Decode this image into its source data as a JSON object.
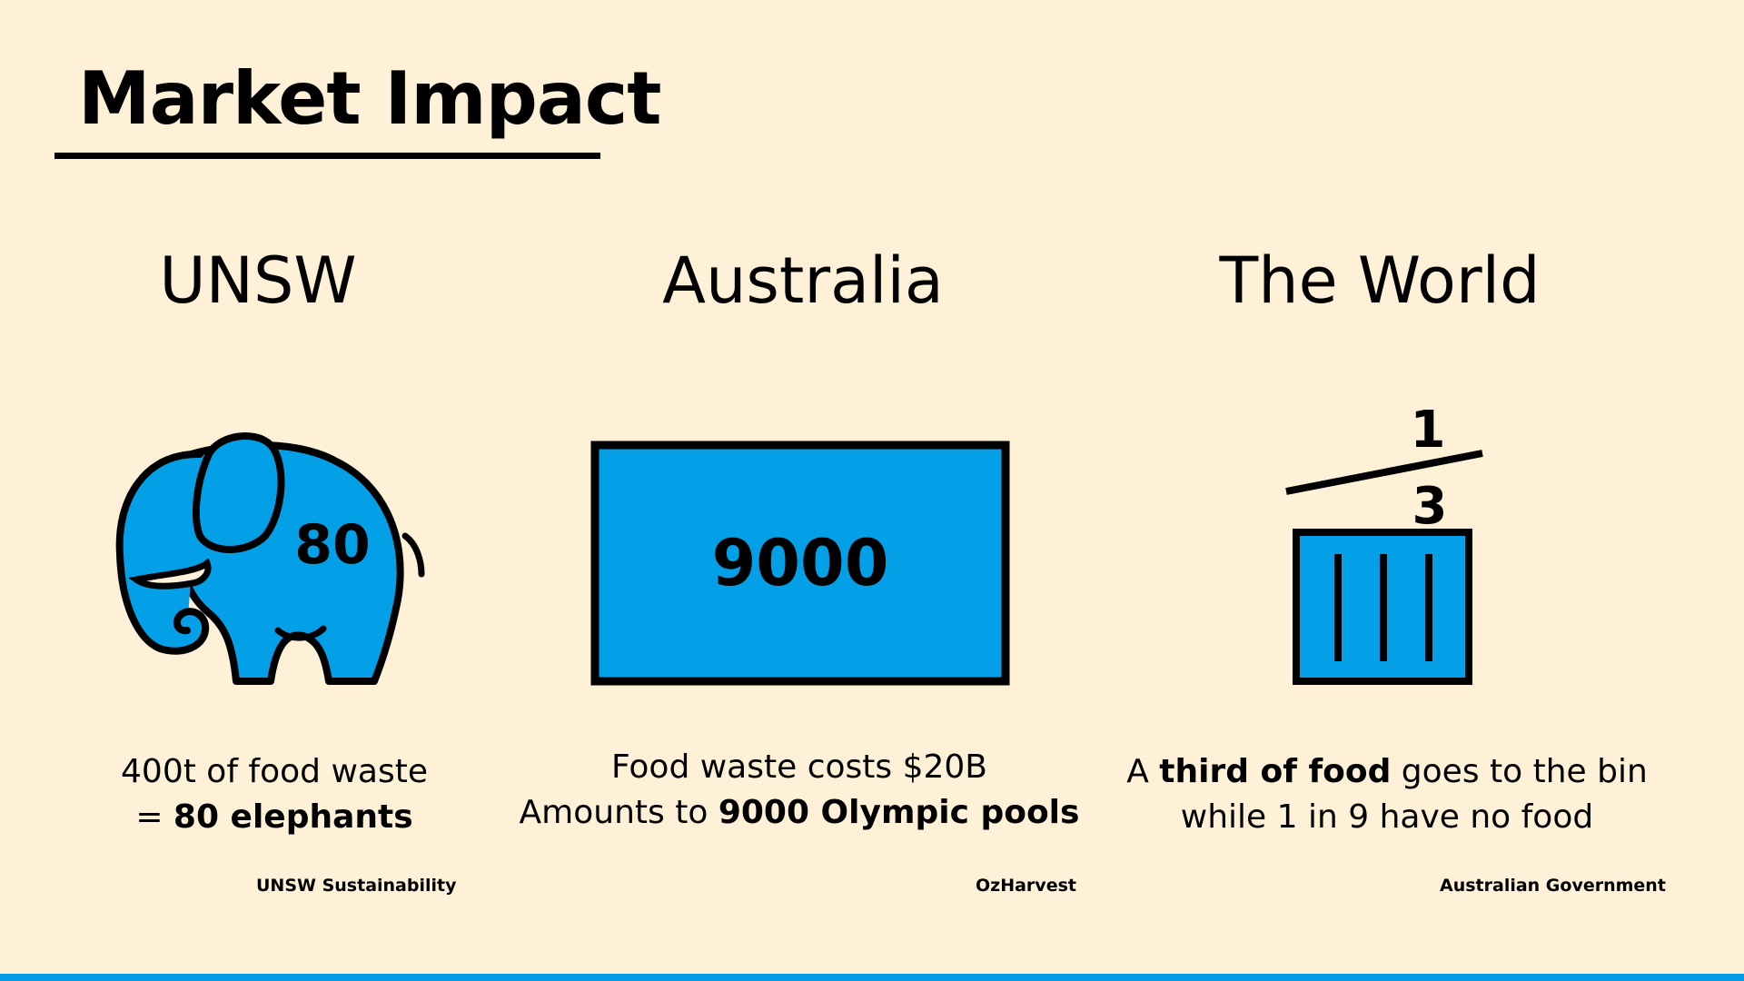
{
  "slide": {
    "title": "Market Impact",
    "accent_color": "#03a0e8"
  },
  "columns": [
    {
      "heading": "UNSW",
      "icon": "elephant-icon",
      "icon_number": "80",
      "caption_line1": "400t of food waste",
      "caption_line2_prefix": "= ",
      "caption_line2_bold": "80 elephants",
      "source": "UNSW Sustainability"
    },
    {
      "heading": "Australia",
      "icon": "pool-icon",
      "icon_number": "9000",
      "caption_line1": "Food waste costs $20B",
      "caption_line2_prefix": "Amounts to ",
      "caption_line2_bold": "9000 Olympic pools",
      "source": "OzHarvest"
    },
    {
      "heading": "The World",
      "icon": "bin-icon",
      "fraction_numerator": "1",
      "fraction_denominator": "3",
      "caption_line1_prefix": "A ",
      "caption_line1_bold": "third of food",
      "caption_line1_suffix": " goes to the bin",
      "caption_line2": "while 1 in 9 have no food",
      "source": "Australian Government"
    }
  ]
}
